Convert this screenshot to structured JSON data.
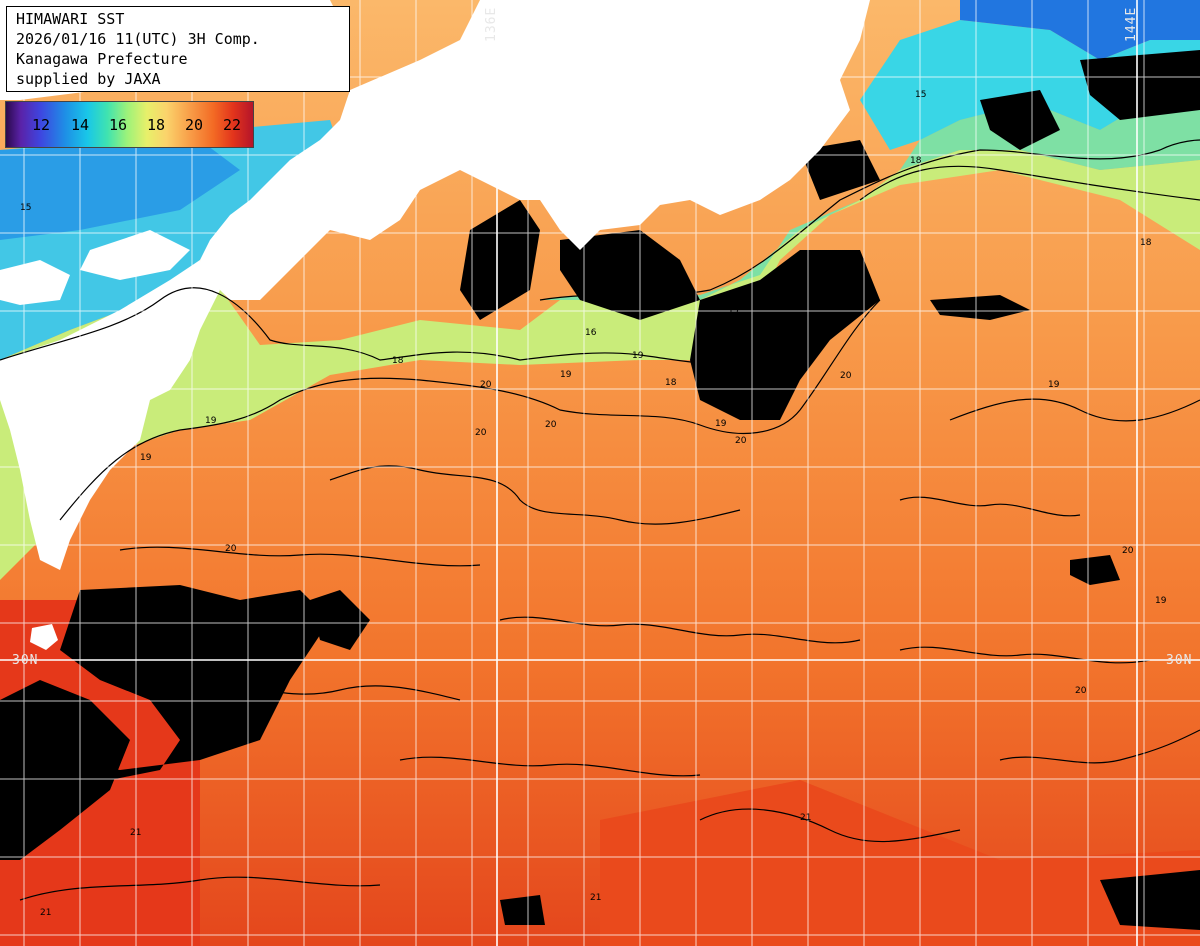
{
  "title": {
    "line1": "HIMAWARI SST",
    "line2": "2026/01/16 11(UTC) 3H Comp.",
    "line3": "Kanagawa Prefecture",
    "line4": "supplied by JAXA"
  },
  "legend": {
    "labels": [
      "12",
      "14",
      "16",
      "18",
      "20",
      "22"
    ]
  },
  "map_labels": {
    "lon_136": "136E",
    "lon_144": "144E",
    "lat_30_left": "30N",
    "lat_30_right": "30N"
  },
  "contour_labels": [
    "15",
    "16",
    "17",
    "18",
    "19",
    "20",
    "21"
  ],
  "colors": {
    "land": "#ffffff",
    "cloud_nodata": "#000000",
    "grid": "#ffffff",
    "contour": "#000000"
  }
}
